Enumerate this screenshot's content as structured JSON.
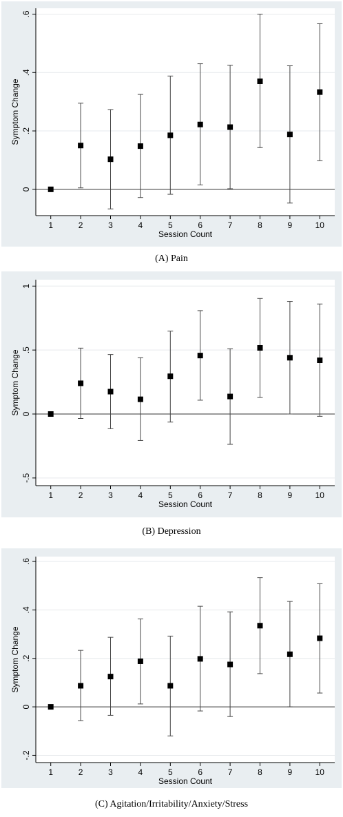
{
  "chart_data": [
    {
      "type": "scatter",
      "title": "",
      "caption": "(A) Pain",
      "xlabel": "Session Count",
      "ylabel": "Symptom Change",
      "x": [
        1,
        2,
        3,
        4,
        5,
        6,
        7,
        8,
        9,
        10
      ],
      "x_tick_labels": [
        "1",
        "2",
        "3",
        "4",
        "5",
        "6",
        "7",
        "8",
        "9",
        "10"
      ],
      "y_ticks": [
        0,
        0.2,
        0.4,
        0.6
      ],
      "y_tick_labels": [
        "0",
        ".2",
        ".4",
        ".6"
      ],
      "ylim": [
        -0.09,
        0.62
      ],
      "xlim": [
        0.5,
        10.5
      ],
      "values": [
        0,
        0.15,
        0.103,
        0.148,
        0.185,
        0.222,
        0.213,
        0.37,
        0.188,
        0.333
      ],
      "ci_low": [
        0,
        0.005,
        -0.067,
        -0.028,
        -0.017,
        0.015,
        0.002,
        0.143,
        -0.047,
        0.098
      ],
      "ci_high": [
        0,
        0.295,
        0.273,
        0.325,
        0.388,
        0.43,
        0.425,
        0.6,
        0.423,
        0.567
      ],
      "grid": true,
      "zero_line": true
    },
    {
      "type": "scatter",
      "title": "",
      "caption": "(B) Depression",
      "xlabel": "Session Count",
      "ylabel": "Symptom Change",
      "x": [
        1,
        2,
        3,
        4,
        5,
        6,
        7,
        8,
        9,
        10
      ],
      "x_tick_labels": [
        "1",
        "2",
        "3",
        "4",
        "5",
        "6",
        "7",
        "8",
        "9",
        "10"
      ],
      "y_ticks": [
        -0.5,
        0,
        0.5,
        1
      ],
      "y_tick_labels": [
        "-.5",
        "0",
        ".5",
        "1"
      ],
      "ylim": [
        -0.56,
        1.05
      ],
      "xlim": [
        0.5,
        10.5
      ],
      "values": [
        0,
        0.24,
        0.175,
        0.115,
        0.295,
        0.457,
        0.137,
        0.517,
        0.44,
        0.42
      ],
      "ci_low": [
        0,
        -0.035,
        -0.115,
        -0.207,
        -0.063,
        0.108,
        -0.237,
        0.13,
        0,
        -0.018
      ],
      "ci_high": [
        0,
        0.515,
        0.465,
        0.44,
        0.648,
        0.808,
        0.51,
        0.903,
        0.88,
        0.86
      ],
      "grid": true,
      "zero_line": true
    },
    {
      "type": "scatter",
      "title": "",
      "caption": "(C) Agitation/Irritability/Anxiety/Stress",
      "xlabel": "Session Count",
      "ylabel": "Symptom Change",
      "x": [
        1,
        2,
        3,
        4,
        5,
        6,
        7,
        8,
        9,
        10
      ],
      "x_tick_labels": [
        "1",
        "2",
        "3",
        "4",
        "5",
        "6",
        "7",
        "8",
        "9",
        "10"
      ],
      "y_ticks": [
        -0.2,
        0,
        0.2,
        0.4,
        0.6
      ],
      "y_tick_labels": [
        "-.2",
        "0",
        ".2",
        ".4",
        ".6"
      ],
      "ylim": [
        -0.23,
        0.62
      ],
      "xlim": [
        0.5,
        10.5
      ],
      "values": [
        0,
        0.087,
        0.125,
        0.188,
        0.087,
        0.198,
        0.175,
        0.335,
        0.217,
        0.283
      ],
      "ci_low": [
        0,
        -0.057,
        -0.035,
        0.012,
        -0.12,
        -0.017,
        -0.04,
        0.137,
        0,
        0.057
      ],
      "ci_high": [
        0,
        0.233,
        0.287,
        0.363,
        0.292,
        0.415,
        0.392,
        0.533,
        0.435,
        0.508
      ],
      "grid": true,
      "zero_line": true
    }
  ]
}
